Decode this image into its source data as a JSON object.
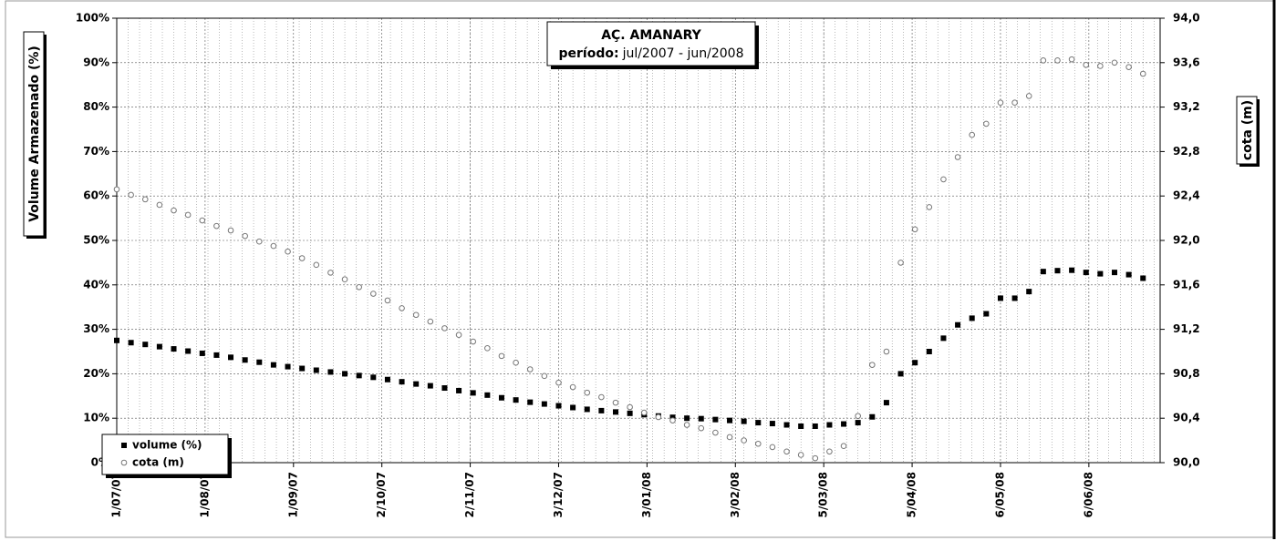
{
  "chart_data": {
    "type": "scatter",
    "title": "AÇ. AMANARY",
    "subtitle_label": "período:",
    "subtitle": "jul/2007 - jun/2008",
    "y_label": "Volume Armazenado (%)",
    "y2_label": "cota (m)",
    "x": [
      "2007-07-01",
      "2007-07-06",
      "2007-07-11",
      "2007-07-16",
      "2007-07-21",
      "2007-07-26",
      "2007-07-31",
      "2007-08-05",
      "2007-08-10",
      "2007-08-15",
      "2007-08-20",
      "2007-08-25",
      "2007-08-30",
      "2007-09-04",
      "2007-09-09",
      "2007-09-14",
      "2007-09-19",
      "2007-09-24",
      "2007-09-29",
      "2007-10-04",
      "2007-10-09",
      "2007-10-14",
      "2007-10-19",
      "2007-10-24",
      "2007-10-29",
      "2007-11-03",
      "2007-11-08",
      "2007-11-13",
      "2007-11-18",
      "2007-11-23",
      "2007-11-28",
      "2007-12-03",
      "2007-12-08",
      "2007-12-13",
      "2007-12-18",
      "2007-12-23",
      "2007-12-28",
      "2008-01-02",
      "2008-01-07",
      "2008-01-12",
      "2008-01-17",
      "2008-01-22",
      "2008-01-27",
      "2008-02-01",
      "2008-02-06",
      "2008-02-11",
      "2008-02-16",
      "2008-02-21",
      "2008-02-26",
      "2008-03-02",
      "2008-03-07",
      "2008-03-12",
      "2008-03-17",
      "2008-03-22",
      "2008-03-27",
      "2008-04-01",
      "2008-04-06",
      "2008-04-11",
      "2008-04-16",
      "2008-04-21",
      "2008-04-26",
      "2008-05-01",
      "2008-05-06",
      "2008-05-11",
      "2008-05-16",
      "2008-05-21",
      "2008-05-26",
      "2008-05-31",
      "2008-06-05",
      "2008-06-10",
      "2008-06-15",
      "2008-06-20",
      "2008-06-25"
    ],
    "series": [
      {
        "name": "volume (%)",
        "color": "#000000",
        "marker": "square",
        "values": [
          27.5,
          27.0,
          26.6,
          26.1,
          25.6,
          25.1,
          24.6,
          24.2,
          23.7,
          23.1,
          22.6,
          22.0,
          21.6,
          21.2,
          20.8,
          20.4,
          20.0,
          19.6,
          19.2,
          18.7,
          18.2,
          17.7,
          17.3,
          16.8,
          16.2,
          15.7,
          15.2,
          14.6,
          14.1,
          13.6,
          13.2,
          12.8,
          12.4,
          12.0,
          11.7,
          11.4,
          11.1,
          10.8,
          10.5,
          10.2,
          10.0,
          9.9,
          9.7,
          9.5,
          9.3,
          9.0,
          8.8,
          8.5,
          8.2,
          8.2,
          8.5,
          8.7,
          9.0,
          10.3,
          13.5,
          20.0,
          22.5,
          25.0,
          28.0,
          31.0,
          32.5,
          33.5,
          37.0,
          37.0,
          38.5,
          43.0,
          43.2,
          43.3,
          42.8,
          42.5,
          42.8,
          42.3,
          41.5
        ]
      },
      {
        "name": "cota (m)",
        "color": "#777777",
        "marker": "circle",
        "axis": "y2",
        "values": [
          92.46,
          92.41,
          92.37,
          92.32,
          92.27,
          92.23,
          92.18,
          92.13,
          92.09,
          92.04,
          91.99,
          91.95,
          91.9,
          91.84,
          91.78,
          91.71,
          91.65,
          91.58,
          91.52,
          91.46,
          91.39,
          91.33,
          91.27,
          91.21,
          91.15,
          91.09,
          91.03,
          90.96,
          90.9,
          90.84,
          90.78,
          90.72,
          90.68,
          90.63,
          90.59,
          90.54,
          90.5,
          90.45,
          90.41,
          90.38,
          90.34,
          90.31,
          90.27,
          90.23,
          90.2,
          90.17,
          90.14,
          90.1,
          90.07,
          90.04,
          90.1,
          90.15,
          90.42,
          90.88,
          91.0,
          91.8,
          92.1,
          92.3,
          92.55,
          92.75,
          92.95,
          93.05,
          93.24,
          93.24,
          93.3,
          93.62,
          93.62,
          93.63,
          93.58,
          93.57,
          93.6,
          93.56,
          93.5
        ]
      }
    ],
    "xlim": [
      "2007-07-01",
      "2008-07-01"
    ],
    "xticks": [
      {
        "value": "2007-07-01",
        "label": "1/07/07"
      },
      {
        "value": "2007-08-01",
        "label": "1/08/07"
      },
      {
        "value": "2007-09-01",
        "label": "1/09/07"
      },
      {
        "value": "2007-10-02",
        "label": "2/10/07"
      },
      {
        "value": "2007-11-02",
        "label": "2/11/07"
      },
      {
        "value": "2007-12-03",
        "label": "3/12/07"
      },
      {
        "value": "2008-01-03",
        "label": "3/01/08"
      },
      {
        "value": "2008-02-03",
        "label": "3/02/08"
      },
      {
        "value": "2008-03-05",
        "label": "5/03/08"
      },
      {
        "value": "2008-04-05",
        "label": "5/04/08"
      },
      {
        "value": "2008-05-06",
        "label": "6/05/08"
      },
      {
        "value": "2008-06-06",
        "label": "6/06/08"
      }
    ],
    "ylim": [
      0,
      100
    ],
    "yticks": [
      {
        "value": 0,
        "label": "0%"
      },
      {
        "value": 10,
        "label": "10%"
      },
      {
        "value": 20,
        "label": "20%"
      },
      {
        "value": 30,
        "label": "30%"
      },
      {
        "value": 40,
        "label": "40%"
      },
      {
        "value": 50,
        "label": "50%"
      },
      {
        "value": 60,
        "label": "60%"
      },
      {
        "value": 70,
        "label": "70%"
      },
      {
        "value": 80,
        "label": "80%"
      },
      {
        "value": 90,
        "label": "90%"
      },
      {
        "value": 100,
        "label": "100%"
      }
    ],
    "y2lim": [
      90,
      94
    ],
    "y2ticks": [
      {
        "value": 90,
        "label": "90,0"
      },
      {
        "value": 90.4,
        "label": "90,4"
      },
      {
        "value": 90.8,
        "label": "90,8"
      },
      {
        "value": 91.2,
        "label": "91,2"
      },
      {
        "value": 91.6,
        "label": "91,6"
      },
      {
        "value": 92,
        "label": "92,0"
      },
      {
        "value": 92.4,
        "label": "92,4"
      },
      {
        "value": 92.8,
        "label": "92,8"
      },
      {
        "value": 93.2,
        "label": "93,2"
      },
      {
        "value": 93.6,
        "label": "93,6"
      },
      {
        "value": 94,
        "label": "94,0"
      }
    ],
    "grid": true,
    "legend": "lower left"
  }
}
